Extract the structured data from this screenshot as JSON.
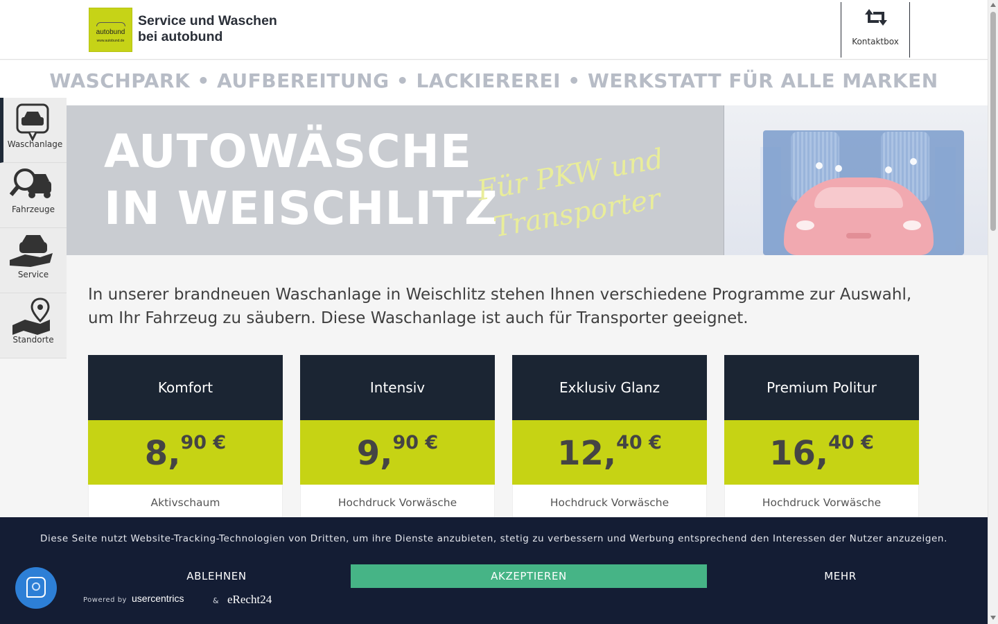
{
  "header": {
    "logo_brand": "autobund",
    "logo_url": "www.autobund.de",
    "title_line1": "Service und Waschen",
    "title_line2": "bei autobund",
    "kontakt_label": "Kontaktbox",
    "kontakt_icon": "retweet-icon"
  },
  "tagline": "WASCHPARK • AUFBEREITUNG • LACKIEREREI • WERKSTATT FÜR ALLE MARKEN",
  "sidebar": {
    "items": [
      {
        "label": "Waschanlage",
        "icon": "car-wash-icon",
        "active": true
      },
      {
        "label": "Fahrzeuge",
        "icon": "car-search-icon",
        "active": false
      },
      {
        "label": "Service",
        "icon": "hand-car-icon",
        "active": false
      },
      {
        "label": "Standorte",
        "icon": "map-pin-icon",
        "active": false
      }
    ]
  },
  "hero": {
    "line1": "AUTOWÄSCHE",
    "line2": "IN WEISCHLITZ",
    "script_line1": "Für PKW und",
    "script_line2": "Transporter"
  },
  "intro": "In unserer brandneuen Waschanlage in Weischlitz stehen Ihnen verschiedene Programme zur Auswahl, um Ihr Fahrzeug zu säubern. Diese Waschanlage ist auch für Transporter geeignet.",
  "programs": [
    {
      "name": "Komfort",
      "euro": "8,",
      "cent": "90 €",
      "first_feature": "Aktivschaum"
    },
    {
      "name": "Intensiv",
      "euro": "9,",
      "cent": "90 €",
      "first_feature": "Hochdruck Vorwäsche"
    },
    {
      "name": "Exklusiv Glanz",
      "euro": "12,",
      "cent": "40 €",
      "first_feature": "Hochdruck Vorwäsche"
    },
    {
      "name": "Premium Politur",
      "euro": "16,",
      "cent": "40 €",
      "first_feature": "Hochdruck Vorwäsche"
    }
  ],
  "cookie": {
    "message": "Diese Seite nutzt Website-Tracking-Technologien von Dritten, um ihre Dienste anzubieten, stetig zu verbessern und Werbung entsprechend den Interessen der Nutzer anzuzeigen.",
    "reject": "ABLEHNEN",
    "accept": "AKZEPTIEREN",
    "more": "MEHR",
    "powered_by": "Powered by",
    "provider1": "usercentrics",
    "ampersand": "&",
    "provider2": "eRecht24"
  },
  "colors": {
    "accent": "#c6d314",
    "dark": "#1b2533",
    "banner": "#141d34",
    "accept": "#46b486"
  }
}
